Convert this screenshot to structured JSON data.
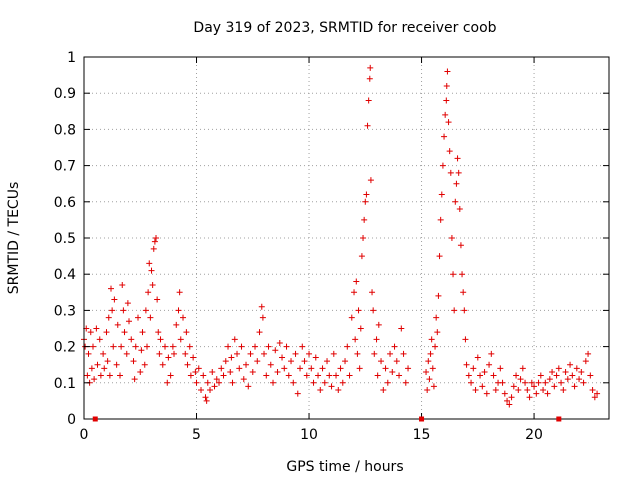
{
  "chart_data": {
    "type": "scatter",
    "title": "Day 319 of 2023, SRMTID for receiver coob",
    "xlabel": "GPS time / hours",
    "ylabel": "SRMTID / TECUs",
    "xlim": [
      0,
      23.33
    ],
    "ylim": [
      0,
      1
    ],
    "xticks": [
      0,
      5,
      10,
      15,
      20
    ],
    "xtick_labels": [
      "0",
      "5",
      "10",
      "15",
      "20"
    ],
    "yticks": [
      0,
      0.1,
      0.2,
      0.3,
      0.4,
      0.5,
      0.6,
      0.7,
      0.8,
      0.9,
      1
    ],
    "ytick_labels": [
      "0",
      "0.1",
      "0.2",
      "0.3",
      "0.4",
      "0.5",
      "0.6",
      "0.7",
      "0.8",
      "0.9",
      "1"
    ],
    "grid": true,
    "marker": "+",
    "series_color": "#e00000",
    "series": [
      {
        "name": "SRMTID",
        "points": [
          [
            0.0,
            0.22
          ],
          [
            0.05,
            0.2
          ],
          [
            0.1,
            0.25
          ],
          [
            0.15,
            0.12
          ],
          [
            0.2,
            0.18
          ],
          [
            0.25,
            0.1
          ],
          [
            0.3,
            0.24
          ],
          [
            0.35,
            0.14
          ],
          [
            0.4,
            0.2
          ],
          [
            0.45,
            0.11
          ],
          [
            0.55,
            0.25
          ],
          [
            0.6,
            0.15
          ],
          [
            0.7,
            0.22
          ],
          [
            0.75,
            0.12
          ],
          [
            0.85,
            0.18
          ],
          [
            0.9,
            0.14
          ],
          [
            1.0,
            0.24
          ],
          [
            1.05,
            0.16
          ],
          [
            1.1,
            0.28
          ],
          [
            1.15,
            0.12
          ],
          [
            1.2,
            0.36
          ],
          [
            1.25,
            0.3
          ],
          [
            1.3,
            0.2
          ],
          [
            1.35,
            0.33
          ],
          [
            1.45,
            0.15
          ],
          [
            1.5,
            0.26
          ],
          [
            1.6,
            0.12
          ],
          [
            1.65,
            0.2
          ],
          [
            1.7,
            0.37
          ],
          [
            1.75,
            0.3
          ],
          [
            1.8,
            0.24
          ],
          [
            1.9,
            0.18
          ],
          [
            1.95,
            0.32
          ],
          [
            2.0,
            0.27
          ],
          [
            2.1,
            0.22
          ],
          [
            2.2,
            0.16
          ],
          [
            2.25,
            0.11
          ],
          [
            2.3,
            0.2
          ],
          [
            2.4,
            0.28
          ],
          [
            2.5,
            0.13
          ],
          [
            2.55,
            0.19
          ],
          [
            2.6,
            0.24
          ],
          [
            2.7,
            0.15
          ],
          [
            2.75,
            0.3
          ],
          [
            2.8,
            0.2
          ],
          [
            2.85,
            0.35
          ],
          [
            2.9,
            0.43
          ],
          [
            2.95,
            0.28
          ],
          [
            3.0,
            0.41
          ],
          [
            3.05,
            0.37
          ],
          [
            3.1,
            0.47
          ],
          [
            3.15,
            0.49
          ],
          [
            3.2,
            0.5
          ],
          [
            3.25,
            0.33
          ],
          [
            3.3,
            0.24
          ],
          [
            3.35,
            0.18
          ],
          [
            3.4,
            0.22
          ],
          [
            3.5,
            0.15
          ],
          [
            3.6,
            0.2
          ],
          [
            3.7,
            0.1
          ],
          [
            3.75,
            0.17
          ],
          [
            3.85,
            0.12
          ],
          [
            3.95,
            0.2
          ],
          [
            4.0,
            0.18
          ],
          [
            4.1,
            0.26
          ],
          [
            4.2,
            0.3
          ],
          [
            4.25,
            0.35
          ],
          [
            4.3,
            0.22
          ],
          [
            4.4,
            0.28
          ],
          [
            4.5,
            0.18
          ],
          [
            4.55,
            0.24
          ],
          [
            4.6,
            0.15
          ],
          [
            4.7,
            0.2
          ],
          [
            4.75,
            0.12
          ],
          [
            4.85,
            0.17
          ],
          [
            4.95,
            0.13
          ],
          [
            5.0,
            0.1
          ],
          [
            5.1,
            0.14
          ],
          [
            5.2,
            0.08
          ],
          [
            5.3,
            0.12
          ],
          [
            5.4,
            0.06
          ],
          [
            5.45,
            0.05
          ],
          [
            5.5,
            0.1
          ],
          [
            5.6,
            0.08
          ],
          [
            5.7,
            0.13
          ],
          [
            5.8,
            0.09
          ],
          [
            5.9,
            0.11
          ],
          [
            6.0,
            0.1
          ],
          [
            6.1,
            0.14
          ],
          [
            6.2,
            0.12
          ],
          [
            6.3,
            0.16
          ],
          [
            6.4,
            0.2
          ],
          [
            6.5,
            0.13
          ],
          [
            6.55,
            0.17
          ],
          [
            6.6,
            0.1
          ],
          [
            6.7,
            0.22
          ],
          [
            6.8,
            0.18
          ],
          [
            6.9,
            0.14
          ],
          [
            7.0,
            0.2
          ],
          [
            7.1,
            0.11
          ],
          [
            7.2,
            0.15
          ],
          [
            7.3,
            0.09
          ],
          [
            7.4,
            0.18
          ],
          [
            7.5,
            0.13
          ],
          [
            7.6,
            0.2
          ],
          [
            7.7,
            0.16
          ],
          [
            7.8,
            0.24
          ],
          [
            7.9,
            0.31
          ],
          [
            7.95,
            0.28
          ],
          [
            8.0,
            0.18
          ],
          [
            8.1,
            0.12
          ],
          [
            8.2,
            0.2
          ],
          [
            8.3,
            0.15
          ],
          [
            8.4,
            0.1
          ],
          [
            8.5,
            0.19
          ],
          [
            8.6,
            0.13
          ],
          [
            8.7,
            0.21
          ],
          [
            8.8,
            0.17
          ],
          [
            8.9,
            0.14
          ],
          [
            9.0,
            0.2
          ],
          [
            9.1,
            0.12
          ],
          [
            9.2,
            0.16
          ],
          [
            9.3,
            0.1
          ],
          [
            9.4,
            0.18
          ],
          [
            9.5,
            0.07
          ],
          [
            9.6,
            0.14
          ],
          [
            9.7,
            0.2
          ],
          [
            9.8,
            0.16
          ],
          [
            9.9,
            0.12
          ],
          [
            10.0,
            0.18
          ],
          [
            10.1,
            0.14
          ],
          [
            10.2,
            0.1
          ],
          [
            10.3,
            0.17
          ],
          [
            10.4,
            0.12
          ],
          [
            10.5,
            0.08
          ],
          [
            10.6,
            0.14
          ],
          [
            10.7,
            0.1
          ],
          [
            10.8,
            0.16
          ],
          [
            10.9,
            0.12
          ],
          [
            11.0,
            0.09
          ],
          [
            11.1,
            0.18
          ],
          [
            11.2,
            0.12
          ],
          [
            11.3,
            0.08
          ],
          [
            11.4,
            0.14
          ],
          [
            11.5,
            0.1
          ],
          [
            11.6,
            0.16
          ],
          [
            11.7,
            0.2
          ],
          [
            11.8,
            0.12
          ],
          [
            11.9,
            0.28
          ],
          [
            12.0,
            0.35
          ],
          [
            12.05,
            0.22
          ],
          [
            12.1,
            0.38
          ],
          [
            12.15,
            0.18
          ],
          [
            12.2,
            0.3
          ],
          [
            12.25,
            0.14
          ],
          [
            12.3,
            0.25
          ],
          [
            12.35,
            0.45
          ],
          [
            12.4,
            0.5
          ],
          [
            12.45,
            0.55
          ],
          [
            12.5,
            0.6
          ],
          [
            12.55,
            0.62
          ],
          [
            12.6,
            0.81
          ],
          [
            12.65,
            0.88
          ],
          [
            12.7,
            0.94
          ],
          [
            12.72,
            0.97
          ],
          [
            12.75,
            0.66
          ],
          [
            12.8,
            0.35
          ],
          [
            12.85,
            0.3
          ],
          [
            12.9,
            0.18
          ],
          [
            13.0,
            0.22
          ],
          [
            13.05,
            0.12
          ],
          [
            13.1,
            0.26
          ],
          [
            13.2,
            0.16
          ],
          [
            13.3,
            0.08
          ],
          [
            13.4,
            0.14
          ],
          [
            13.5,
            0.1
          ],
          [
            13.6,
            0.18
          ],
          [
            13.7,
            0.13
          ],
          [
            13.8,
            0.2
          ],
          [
            13.9,
            0.16
          ],
          [
            14.0,
            0.12
          ],
          [
            14.1,
            0.25
          ],
          [
            14.2,
            0.18
          ],
          [
            14.3,
            0.1
          ],
          [
            14.4,
            0.14
          ],
          [
            15.2,
            0.13
          ],
          [
            15.25,
            0.08
          ],
          [
            15.3,
            0.16
          ],
          [
            15.35,
            0.11
          ],
          [
            15.4,
            0.18
          ],
          [
            15.45,
            0.22
          ],
          [
            15.5,
            0.14
          ],
          [
            15.55,
            0.09
          ],
          [
            15.6,
            0.2
          ],
          [
            15.65,
            0.28
          ],
          [
            15.7,
            0.24
          ],
          [
            15.75,
            0.34
          ],
          [
            15.8,
            0.45
          ],
          [
            15.85,
            0.55
          ],
          [
            15.9,
            0.62
          ],
          [
            15.95,
            0.7
          ],
          [
            16.0,
            0.78
          ],
          [
            16.05,
            0.84
          ],
          [
            16.1,
            0.88
          ],
          [
            16.12,
            0.92
          ],
          [
            16.15,
            0.96
          ],
          [
            16.2,
            0.82
          ],
          [
            16.25,
            0.74
          ],
          [
            16.3,
            0.68
          ],
          [
            16.35,
            0.5
          ],
          [
            16.4,
            0.4
          ],
          [
            16.45,
            0.3
          ],
          [
            16.5,
            0.6
          ],
          [
            16.55,
            0.65
          ],
          [
            16.6,
            0.72
          ],
          [
            16.65,
            0.68
          ],
          [
            16.7,
            0.58
          ],
          [
            16.75,
            0.48
          ],
          [
            16.8,
            0.4
          ],
          [
            16.85,
            0.35
          ],
          [
            16.9,
            0.3
          ],
          [
            16.95,
            0.22
          ],
          [
            17.0,
            0.15
          ],
          [
            17.1,
            0.12
          ],
          [
            17.2,
            0.1
          ],
          [
            17.3,
            0.14
          ],
          [
            17.4,
            0.08
          ],
          [
            17.5,
            0.17
          ],
          [
            17.6,
            0.12
          ],
          [
            17.7,
            0.09
          ],
          [
            17.8,
            0.13
          ],
          [
            17.9,
            0.07
          ],
          [
            18.0,
            0.15
          ],
          [
            18.1,
            0.18
          ],
          [
            18.2,
            0.12
          ],
          [
            18.3,
            0.08
          ],
          [
            18.4,
            0.1
          ],
          [
            18.5,
            0.14
          ],
          [
            18.6,
            0.1
          ],
          [
            18.7,
            0.07
          ],
          [
            18.8,
            0.05
          ],
          [
            18.9,
            0.04
          ],
          [
            19.0,
            0.06
          ],
          [
            19.1,
            0.09
          ],
          [
            19.2,
            0.12
          ],
          [
            19.3,
            0.08
          ],
          [
            19.4,
            0.11
          ],
          [
            19.5,
            0.14
          ],
          [
            19.6,
            0.1
          ],
          [
            19.7,
            0.08
          ],
          [
            19.8,
            0.06
          ],
          [
            19.9,
            0.1
          ],
          [
            20.0,
            0.09
          ],
          [
            20.1,
            0.07
          ],
          [
            20.2,
            0.1
          ],
          [
            20.3,
            0.12
          ],
          [
            20.4,
            0.08
          ],
          [
            20.5,
            0.1
          ],
          [
            20.6,
            0.07
          ],
          [
            20.7,
            0.11
          ],
          [
            20.8,
            0.13
          ],
          [
            20.9,
            0.09
          ],
          [
            21.0,
            0.12
          ],
          [
            21.1,
            0.14
          ],
          [
            21.2,
            0.1
          ],
          [
            21.3,
            0.08
          ],
          [
            21.4,
            0.13
          ],
          [
            21.5,
            0.11
          ],
          [
            21.6,
            0.15
          ],
          [
            21.7,
            0.12
          ],
          [
            21.8,
            0.09
          ],
          [
            21.9,
            0.14
          ],
          [
            22.0,
            0.11
          ],
          [
            22.1,
            0.13
          ],
          [
            22.2,
            0.1
          ],
          [
            22.3,
            0.16
          ],
          [
            22.4,
            0.18
          ],
          [
            22.5,
            0.12
          ],
          [
            22.6,
            0.08
          ],
          [
            22.7,
            0.06
          ],
          [
            22.8,
            0.07
          ]
        ]
      }
    ],
    "baseline_markers_x": [
      0.5,
      15.0,
      21.1
    ]
  }
}
